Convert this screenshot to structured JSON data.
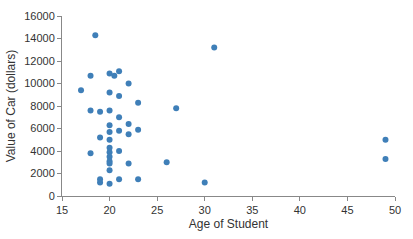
{
  "chart_data": {
    "type": "scatter",
    "x_label": "Age of Student",
    "y_label": "Value of Car (dollars)",
    "x": [
      18.5,
      31,
      18,
      17,
      20,
      21,
      20.5,
      22,
      20,
      21,
      23,
      27,
      18,
      19,
      20,
      21,
      22,
      20,
      20,
      21,
      23,
      22,
      19,
      20,
      20,
      20,
      21,
      18,
      20,
      20,
      20,
      22,
      26,
      20,
      21,
      19,
      19,
      20,
      23,
      30,
      49,
      49
    ],
    "values": [
      14300,
      13200,
      10700,
      9400,
      10900,
      11100,
      10700,
      10000,
      9200,
      8900,
      8300,
      7800,
      7600,
      7500,
      7600,
      7000,
      6400,
      6300,
      5700,
      5800,
      5900,
      5500,
      5200,
      5000,
      4300,
      3900,
      4000,
      3800,
      3500,
      3100,
      2900,
      2900,
      3000,
      2300,
      1500,
      1500,
      1200,
      1100,
      1500,
      1200,
      5000,
      3300
    ],
    "color": "#3f7fb8",
    "xlim": [
      15,
      50
    ],
    "xticks": [
      15,
      20,
      25,
      30,
      35,
      40,
      45,
      50
    ],
    "ylim": [
      0,
      16000
    ],
    "yticks": [
      0,
      2000,
      4000,
      6000,
      8000,
      10000,
      12000,
      14000,
      16000
    ],
    "grid": false
  }
}
